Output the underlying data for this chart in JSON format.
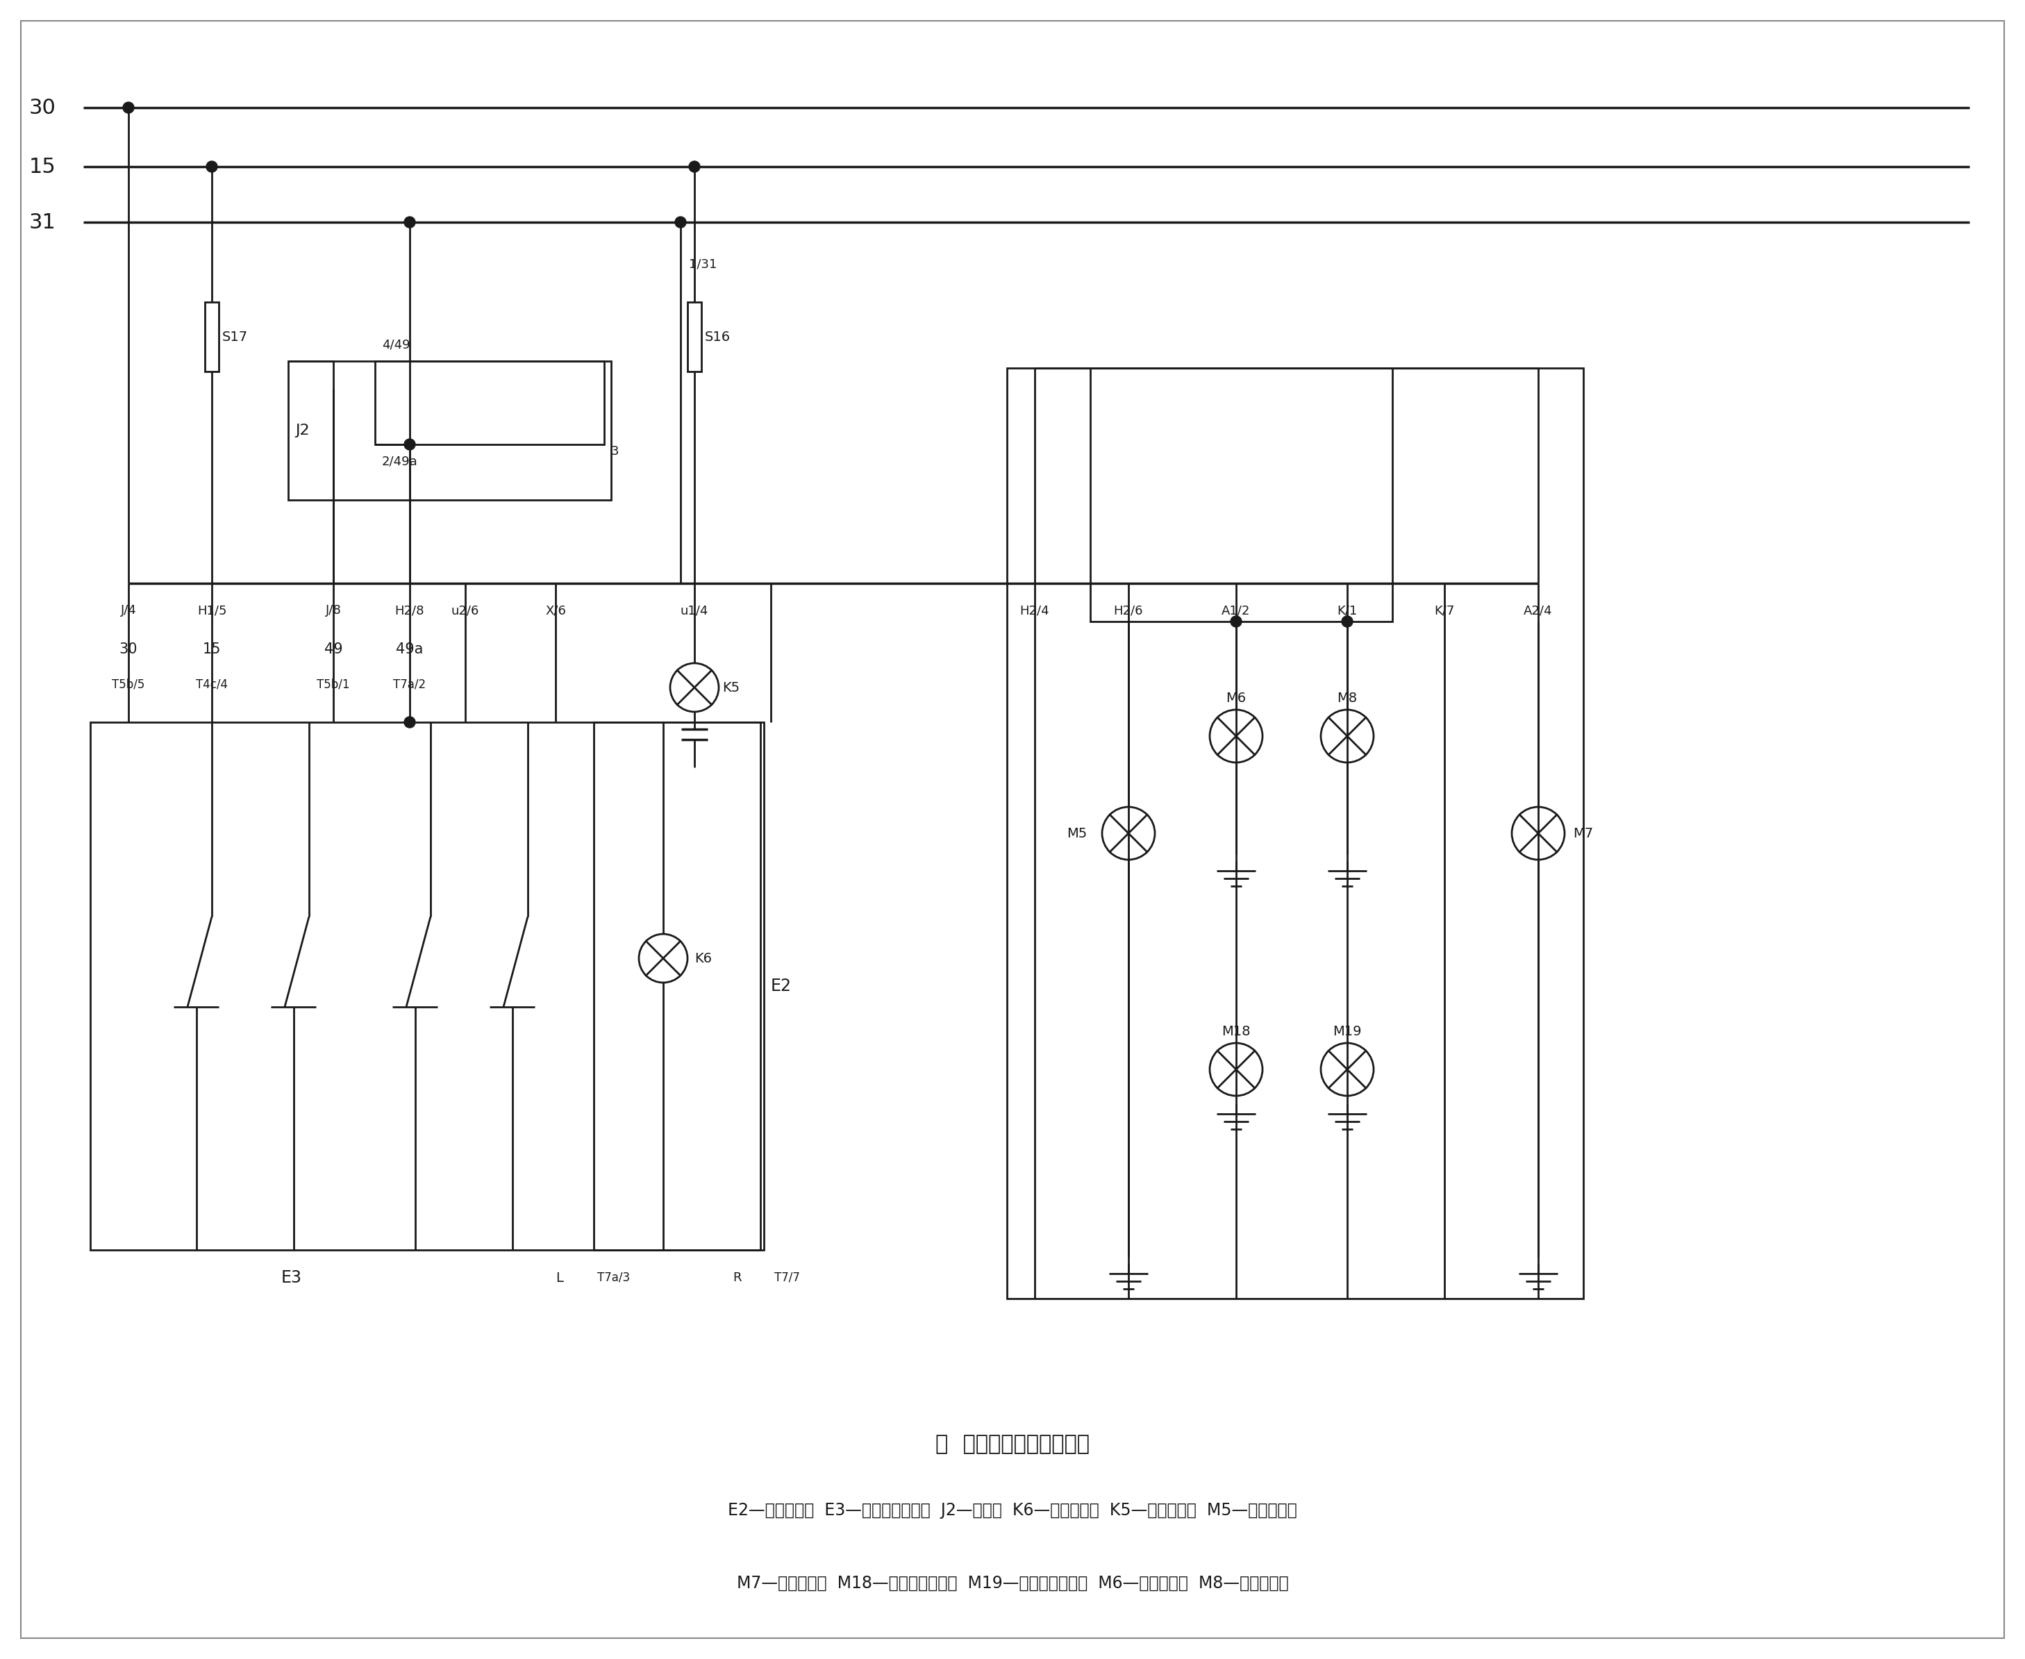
{
  "title": "图  捷达轿车转向灯电路图",
  "sub1": "E2—转向灯开关  E3—危急报警灯开关  J2—闪光器  K6—危急报警灯  K5—转向指示灯  M5—左前转向灯",
  "sub2": "M7—右前转向灯  M18—左侧停车转向灯  M19—右侧停车转向灯  M6—左后转向灯  M8—右后转向灯",
  "bg": "#ffffff",
  "lc": "#1a1a1a"
}
